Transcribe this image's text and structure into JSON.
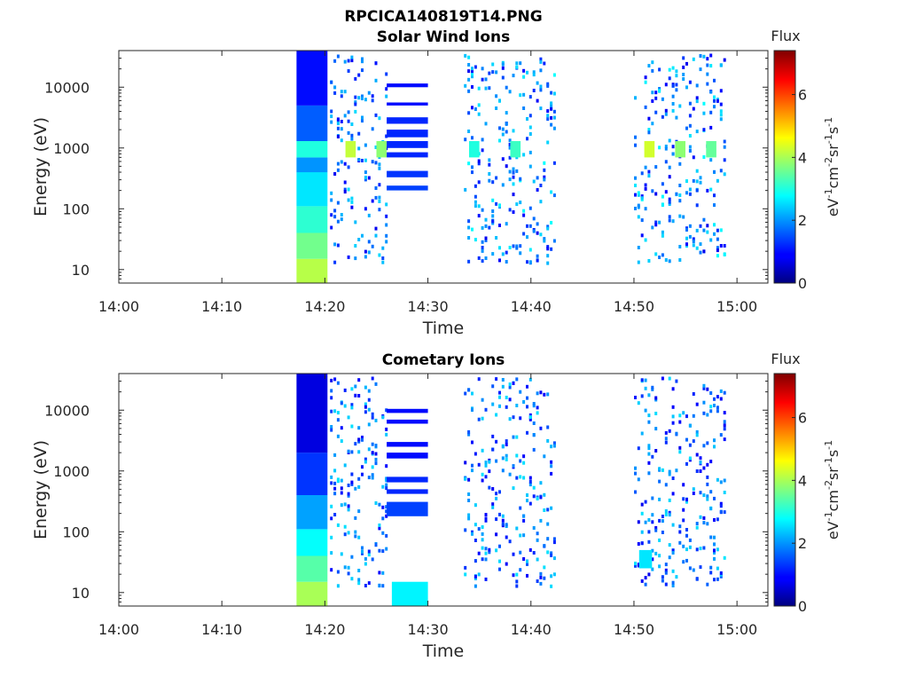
{
  "figure": {
    "title": "RPCICA140819T14.PNG"
  },
  "chart_data": [
    {
      "type": "heatmap",
      "title": "Solar Wind Ions",
      "xlabel": "Time",
      "ylabel": "Energy (eV)",
      "y_scale": "log",
      "ylim": [
        6,
        40000
      ],
      "xlim": [
        "14:00",
        "15:03"
      ],
      "x_ticks": [
        "14:00",
        "14:10",
        "14:20",
        "14:30",
        "14:40",
        "14:50",
        "15:00"
      ],
      "y_ticks": [
        "10",
        "100",
        "1000",
        "10000"
      ],
      "y_tick_values": [
        10,
        100,
        1000,
        10000
      ],
      "colorbar": {
        "label": "Flux",
        "unit": "eV-1cm-2sr-1s-1",
        "range": [
          0,
          7.4
        ],
        "ticks": [
          "0",
          "2",
          "4",
          "6"
        ],
        "colormap": "jet"
      },
      "blocks": [
        {
          "t0": "14:17:15",
          "t1": "14:20:15",
          "e_min": 5.5,
          "e_max": 15,
          "flux": 4.1
        },
        {
          "t0": "14:17:15",
          "t1": "14:20:15",
          "e_min": 15,
          "e_max": 40,
          "flux": 3.6
        },
        {
          "t0": "14:17:15",
          "t1": "14:20:15",
          "e_min": 40,
          "e_max": 110,
          "flux": 3.1
        },
        {
          "t0": "14:17:15",
          "t1": "14:20:15",
          "e_min": 110,
          "e_max": 400,
          "flux": 2.6
        },
        {
          "t0": "14:17:15",
          "t1": "14:20:15",
          "e_min": 400,
          "e_max": 700,
          "flux": 2.0
        },
        {
          "t0": "14:17:15",
          "t1": "14:20:15",
          "e_min": 700,
          "e_max": 1300,
          "flux": 3.0
        },
        {
          "t0": "14:17:15",
          "t1": "14:20:15",
          "e_min": 1300,
          "e_max": 5000,
          "flux": 1.6
        },
        {
          "t0": "14:17:15",
          "t1": "14:20:15",
          "e_min": 5000,
          "e_max": 40000,
          "flux": 1.0
        },
        {
          "t0": "14:22",
          "t1": "14:23",
          "e_min": 700,
          "e_max": 1300,
          "flux": 4.2
        },
        {
          "t0": "14:25",
          "t1": "14:26",
          "e_min": 700,
          "e_max": 1300,
          "flux": 3.8
        },
        {
          "t0": "14:26",
          "t1": "14:30",
          "e_min": 10000,
          "e_max": 11500,
          "flux": 1.0
        },
        {
          "t0": "14:26",
          "t1": "14:30",
          "e_min": 5000,
          "e_max": 5600,
          "flux": 1.0
        },
        {
          "t0": "14:26",
          "t1": "14:30",
          "e_min": 2500,
          "e_max": 3200,
          "flux": 1.2
        },
        {
          "t0": "14:26",
          "t1": "14:30",
          "e_min": 1500,
          "e_max": 2000,
          "flux": 1.2
        },
        {
          "t0": "14:26",
          "t1": "14:30",
          "e_min": 1000,
          "e_max": 1300,
          "flux": 1.2
        },
        {
          "t0": "14:26",
          "t1": "14:30",
          "e_min": 700,
          "e_max": 850,
          "flux": 1.2
        },
        {
          "t0": "14:26",
          "t1": "14:30",
          "e_min": 330,
          "e_max": 420,
          "flux": 1.3
        },
        {
          "t0": "14:26",
          "t1": "14:30",
          "e_min": 200,
          "e_max": 240,
          "flux": 1.4
        },
        {
          "t0": "14:34",
          "t1": "14:35",
          "e_min": 700,
          "e_max": 1300,
          "flux": 3.0
        },
        {
          "t0": "14:38",
          "t1": "14:39",
          "e_min": 700,
          "e_max": 1300,
          "flux": 3.2
        },
        {
          "t0": "14:51",
          "t1": "14:52",
          "e_min": 700,
          "e_max": 1300,
          "flux": 4.3
        },
        {
          "t0": "14:54",
          "t1": "14:55",
          "e_min": 700,
          "e_max": 1300,
          "flux": 3.8
        },
        {
          "t0": "14:57",
          "t1": "14:58",
          "e_min": 700,
          "e_max": 1300,
          "flux": 3.5
        }
      ],
      "scatter_intervals": [
        {
          "t0": "14:20:30",
          "t1": "14:26",
          "flux_range": [
            0.8,
            2.6
          ]
        },
        {
          "t0": "14:33:30",
          "t1": "14:42:30",
          "flux_range": [
            0.8,
            2.8
          ]
        },
        {
          "t0": "14:50",
          "t1": "14:59",
          "flux_range": [
            0.8,
            2.8
          ]
        }
      ]
    },
    {
      "type": "heatmap",
      "title": "Cometary Ions",
      "xlabel": "Time",
      "ylabel": "Energy (eV)",
      "y_scale": "log",
      "ylim": [
        6,
        40000
      ],
      "xlim": [
        "14:00",
        "15:03"
      ],
      "x_ticks": [
        "14:00",
        "14:10",
        "14:20",
        "14:30",
        "14:40",
        "14:50",
        "15:00"
      ],
      "y_ticks": [
        "10",
        "100",
        "1000",
        "10000"
      ],
      "y_tick_values": [
        10,
        100,
        1000,
        10000
      ],
      "colorbar": {
        "label": "Flux",
        "unit": "eV-1cm-2sr-1s-1",
        "range": [
          0,
          7.4
        ],
        "ticks": [
          "0",
          "2",
          "4",
          "6"
        ],
        "colormap": "jet"
      },
      "blocks": [
        {
          "t0": "14:17:15",
          "t1": "14:20:15",
          "e_min": 5.5,
          "e_max": 15,
          "flux": 4.0
        },
        {
          "t0": "14:17:15",
          "t1": "14:20:15",
          "e_min": 15,
          "e_max": 40,
          "flux": 3.4
        },
        {
          "t0": "14:17:15",
          "t1": "14:20:15",
          "e_min": 40,
          "e_max": 110,
          "flux": 2.8
        },
        {
          "t0": "14:17:15",
          "t1": "14:20:15",
          "e_min": 110,
          "e_max": 400,
          "flux": 2.1
        },
        {
          "t0": "14:17:15",
          "t1": "14:20:15",
          "e_min": 400,
          "e_max": 2000,
          "flux": 1.3
        },
        {
          "t0": "14:17:15",
          "t1": "14:20:15",
          "e_min": 2000,
          "e_max": 40000,
          "flux": 0.7
        },
        {
          "t0": "14:26:30",
          "t1": "14:30",
          "e_min": 5.5,
          "e_max": 15,
          "flux": 2.7
        },
        {
          "t0": "14:26",
          "t1": "14:30",
          "e_min": 9000,
          "e_max": 10500,
          "flux": 1.0
        },
        {
          "t0": "14:26",
          "t1": "14:30",
          "e_min": 6000,
          "e_max": 7000,
          "flux": 1.0
        },
        {
          "t0": "14:26",
          "t1": "14:30",
          "e_min": 2500,
          "e_max": 3000,
          "flux": 1.0
        },
        {
          "t0": "14:26",
          "t1": "14:30",
          "e_min": 1600,
          "e_max": 2000,
          "flux": 1.0
        },
        {
          "t0": "14:26",
          "t1": "14:30",
          "e_min": 650,
          "e_max": 800,
          "flux": 1.2
        },
        {
          "t0": "14:26",
          "t1": "14:30",
          "e_min": 420,
          "e_max": 500,
          "flux": 1.2
        },
        {
          "t0": "14:26",
          "t1": "14:30",
          "e_min": 180,
          "e_max": 310,
          "flux": 1.4
        },
        {
          "t0": "14:50:30",
          "t1": "14:51:45",
          "e_min": 25,
          "e_max": 50,
          "flux": 2.6
        }
      ],
      "scatter_intervals": [
        {
          "t0": "14:20:30",
          "t1": "14:26",
          "flux_range": [
            0.8,
            2.6
          ]
        },
        {
          "t0": "14:33:30",
          "t1": "14:42:30",
          "flux_range": [
            0.8,
            2.6
          ]
        },
        {
          "t0": "14:50",
          "t1": "14:59",
          "flux_range": [
            0.8,
            2.6
          ]
        }
      ]
    }
  ]
}
